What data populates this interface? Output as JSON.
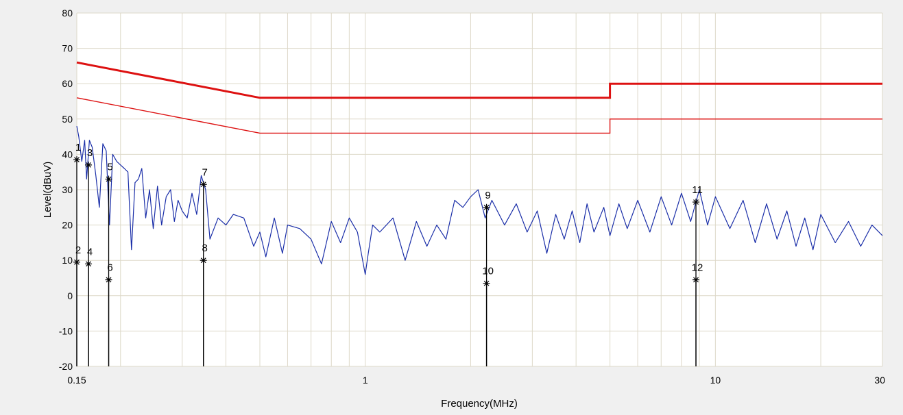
{
  "chart_data": {
    "type": "line",
    "xlabel": "Frequency(MHz)",
    "ylabel": "Level(dBuV)",
    "xscale": "log",
    "xlim": [
      0.15,
      30
    ],
    "ylim": [
      -20,
      80
    ],
    "x_ticks": [
      {
        "value": 0.15,
        "label": "0.15"
      },
      {
        "value": 1,
        "label": "1"
      },
      {
        "value": 10,
        "label": "10"
      },
      {
        "value": 30,
        "label": "30"
      }
    ],
    "y_ticks": [
      -20,
      -10,
      0,
      10,
      20,
      30,
      40,
      50,
      60,
      70,
      80
    ],
    "grid": true,
    "colors": {
      "limit": "#dd1111",
      "trace": "#1a2ea8",
      "marker": "#000000",
      "plot_bg": "#ffffff",
      "grid": "#ddd8c8",
      "frame": "#f0f0f0"
    },
    "series": [
      {
        "role": "limit-quasi-peak",
        "x": [
          0.15,
          0.5,
          0.5,
          5,
          5,
          30
        ],
        "y": [
          66,
          56,
          56,
          56,
          60,
          60
        ]
      },
      {
        "role": "limit-average",
        "x": [
          0.15,
          0.5,
          0.5,
          5,
          5,
          30
        ],
        "y": [
          56,
          46,
          46,
          46,
          50,
          50
        ]
      },
      {
        "role": "measurement-trace",
        "x": [
          0.15,
          0.152,
          0.155,
          0.158,
          0.16,
          0.163,
          0.166,
          0.17,
          0.174,
          0.178,
          0.182,
          0.186,
          0.19,
          0.195,
          0.2,
          0.205,
          0.21,
          0.215,
          0.22,
          0.225,
          0.23,
          0.236,
          0.242,
          0.248,
          0.255,
          0.262,
          0.27,
          0.278,
          0.285,
          0.292,
          0.3,
          0.31,
          0.32,
          0.33,
          0.34,
          0.35,
          0.36,
          0.38,
          0.4,
          0.42,
          0.45,
          0.48,
          0.5,
          0.52,
          0.55,
          0.58,
          0.6,
          0.65,
          0.7,
          0.75,
          0.8,
          0.85,
          0.9,
          0.95,
          1.0,
          1.02,
          1.05,
          1.1,
          1.2,
          1.3,
          1.4,
          1.5,
          1.6,
          1.7,
          1.8,
          1.9,
          2.0,
          2.1,
          2.2,
          2.3,
          2.5,
          2.7,
          2.9,
          3.1,
          3.3,
          3.5,
          3.7,
          3.9,
          4.1,
          4.3,
          4.5,
          4.8,
          5.0,
          5.3,
          5.6,
          6.0,
          6.5,
          7.0,
          7.5,
          8.0,
          8.5,
          9.0,
          9.5,
          10,
          11,
          12,
          13,
          14,
          15,
          16,
          17,
          18,
          19,
          20,
          22,
          24,
          26,
          28,
          30
        ],
        "y": [
          48,
          45,
          38,
          44,
          33,
          44,
          42,
          34,
          25,
          43,
          41,
          20,
          40,
          38,
          37,
          36,
          35,
          13,
          32,
          33,
          36,
          22,
          30,
          19,
          31,
          20,
          28,
          30,
          21,
          27,
          24,
          22,
          29,
          23,
          34,
          30,
          16,
          22,
          20,
          23,
          22,
          14,
          18,
          11,
          22,
          12,
          20,
          19,
          16,
          9,
          21,
          15,
          22,
          18,
          6,
          12,
          20,
          18,
          22,
          10,
          21,
          14,
          20,
          16,
          27,
          25,
          28,
          30,
          22,
          27,
          20,
          26,
          18,
          24,
          12,
          23,
          16,
          24,
          15,
          26,
          18,
          25,
          17,
          26,
          19,
          27,
          18,
          28,
          20,
          29,
          21,
          30,
          20,
          28,
          19,
          27,
          15,
          26,
          16,
          24,
          14,
          22,
          13,
          23,
          15,
          21,
          14,
          20,
          17
        ]
      }
    ],
    "markers": [
      {
        "label": "1",
        "x": 0.15,
        "y": 38.5
      },
      {
        "label": "2",
        "x": 0.15,
        "y": 9.5
      },
      {
        "label": "3",
        "x": 0.162,
        "y": 37
      },
      {
        "label": "4",
        "x": 0.162,
        "y": 9
      },
      {
        "label": "5",
        "x": 0.185,
        "y": 33
      },
      {
        "label": "6",
        "x": 0.185,
        "y": 4.5
      },
      {
        "label": "7",
        "x": 0.345,
        "y": 31.5
      },
      {
        "label": "8",
        "x": 0.345,
        "y": 10
      },
      {
        "label": "9",
        "x": 2.22,
        "y": 25
      },
      {
        "label": "10",
        "x": 2.22,
        "y": 3.5
      },
      {
        "label": "11",
        "x": 8.8,
        "y": 26.5
      },
      {
        "label": "12",
        "x": 8.8,
        "y": 4.5
      }
    ]
  }
}
